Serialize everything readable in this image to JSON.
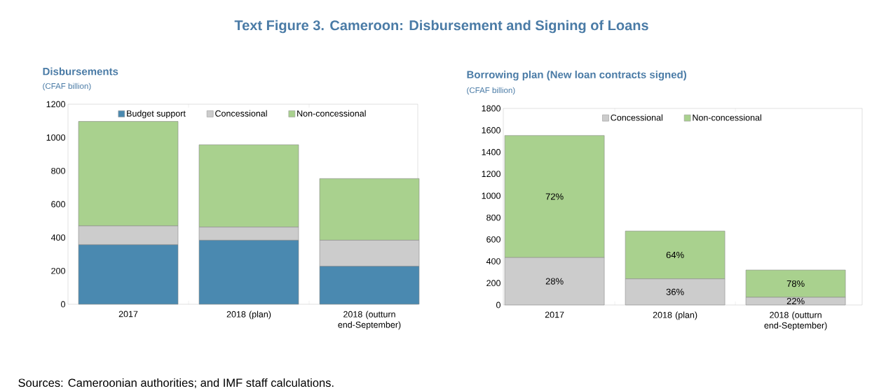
{
  "chart_data": [
    {
      "type": "bar",
      "title": "Text Figure 3. Cameroon: Disbursement and Signing of Loans",
      "subtitle": "Disbursements",
      "ylabel": "(CFAF billion)",
      "stacked": true,
      "legend": "top",
      "categories": [
        "2017",
        "2018 (plan)",
        "2018 (outturn end-September)"
      ],
      "series": [
        {
          "name": "Budget support",
          "color": "#4a89b0",
          "values": [
            357,
            384,
            228
          ]
        },
        {
          "name": "Concessional",
          "color": "#cccccc",
          "values": [
            113,
            79,
            156
          ]
        },
        {
          "name": "Non-concessional",
          "color": "#a9d18e",
          "values": [
            627,
            494,
            370
          ]
        }
      ],
      "ylim": [
        0,
        1200
      ],
      "yticks": [
        0,
        200,
        400,
        600,
        800,
        1000,
        1200
      ],
      "annotations": [
        "Sources: Cameroonian authorities; and IMF staff calculations."
      ]
    },
    {
      "type": "bar",
      "title": "Borrowing plan (New loan contracts signed)",
      "ylabel": "(CFAF billion)",
      "stacked": true,
      "legend": "top",
      "categories": [
        "2017",
        "2018 (plan)",
        "2018 (outturn end-September)"
      ],
      "series": [
        {
          "name": "Concessional",
          "color": "#cccccc",
          "values": [
            434,
            239,
            70
          ]
        },
        {
          "name": "Non-concessional",
          "color": "#a9d18e",
          "values": [
            1118,
            438,
            250
          ]
        }
      ],
      "annotations": [
        "28%",
        "36%",
        "22%",
        "72%",
        "64%",
        "78%"
      ],
      "ylim": [
        0,
        1800
      ],
      "yticks": [
        0,
        200,
        400,
        600,
        800,
        1000,
        1200,
        1400,
        1600,
        1800
      ]
    }
  ]
}
